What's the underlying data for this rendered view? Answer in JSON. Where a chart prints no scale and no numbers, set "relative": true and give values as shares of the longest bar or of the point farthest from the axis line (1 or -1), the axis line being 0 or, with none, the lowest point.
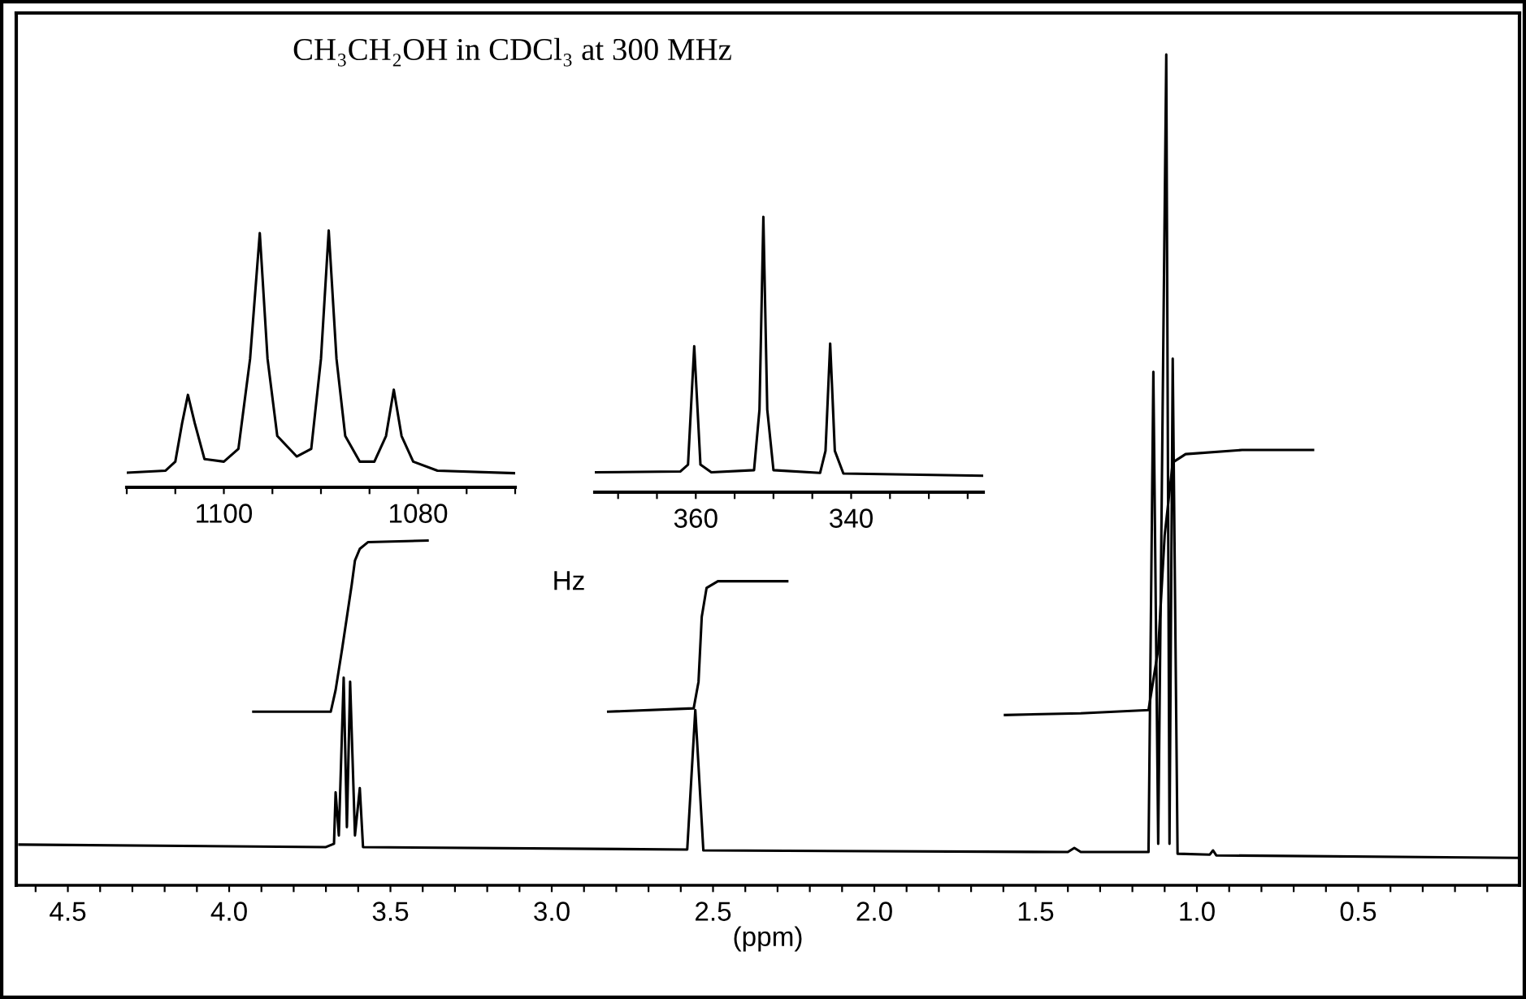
{
  "chart_data": [
    {
      "type": "line",
      "title": "CH₃CH₂OH in CDCl₃ at 300 MHz",
      "xlabel": "(ppm)",
      "relative": true,
      "tick_labels": "x",
      "grid": false,
      "xlim": [
        4.66,
        0.0
      ],
      "xticks": [
        {
          "value": 4.6,
          "label": null
        },
        4.5,
        {
          "value": 4.4,
          "label": null
        },
        {
          "value": 4.3,
          "label": null
        },
        {
          "value": 4.2,
          "label": null
        },
        {
          "value": 4.1,
          "label": null
        },
        {
          "value": 4.0,
          "label": "4.0"
        },
        {
          "value": 3.9,
          "label": null
        },
        {
          "value": 3.8,
          "label": null
        },
        {
          "value": 3.7,
          "label": null
        },
        {
          "value": 3.6,
          "label": null
        },
        3.5,
        {
          "value": 3.4,
          "label": null
        },
        {
          "value": 3.3,
          "label": null
        },
        {
          "value": 3.2,
          "label": null
        },
        {
          "value": 3.1,
          "label": null
        },
        {
          "value": 3.0,
          "label": "3.0"
        },
        {
          "value": 2.9,
          "label": null
        },
        {
          "value": 2.8,
          "label": null
        },
        {
          "value": 2.7,
          "label": null
        },
        {
          "value": 2.6,
          "label": null
        },
        2.5,
        {
          "value": 2.4,
          "label": null
        },
        {
          "value": 2.3,
          "label": null
        },
        {
          "value": 2.2,
          "label": null
        },
        {
          "value": 2.1,
          "label": null
        },
        {
          "value": 2.0,
          "label": "2.0"
        },
        {
          "value": 1.9,
          "label": null
        },
        {
          "value": 1.8,
          "label": null
        },
        {
          "value": 1.7,
          "label": null
        },
        {
          "value": 1.6,
          "label": null
        },
        1.5,
        {
          "value": 1.4,
          "label": null
        },
        {
          "value": 1.3,
          "label": null
        },
        {
          "value": 1.2,
          "label": null
        },
        {
          "value": 1.1,
          "label": null
        },
        {
          "value": 1.0,
          "label": "1.0"
        },
        {
          "value": 0.9,
          "label": null
        },
        {
          "value": 0.8,
          "label": null
        },
        {
          "value": 0.7,
          "label": null
        },
        {
          "value": 0.6,
          "label": null
        },
        0.5,
        {
          "value": 0.4,
          "label": null
        },
        {
          "value": 0.3,
          "label": null
        },
        {
          "value": 0.2,
          "label": null
        },
        {
          "value": 0.1,
          "label": null
        }
      ],
      "series": [
        {
          "color": "#000000",
          "x": [
            4.65,
            3.7,
            3.675,
            3.67,
            3.66,
            3.645,
            3.635,
            3.625,
            3.61,
            3.595,
            3.585,
            2.58,
            2.555,
            2.53,
            1.4,
            1.38,
            1.36,
            1.15,
            1.135,
            1.12,
            1.095,
            1.085,
            1.075,
            1.06,
            0.96,
            0.95,
            0.94,
            0.0
          ],
          "values": [
            0.049,
            0.046,
            0.05,
            0.112,
            0.06,
            0.25,
            0.07,
            0.245,
            0.06,
            0.117,
            0.046,
            0.043,
            0.211,
            0.042,
            0.04,
            0.045,
            0.04,
            0.04,
            0.618,
            0.05,
            1.0,
            0.05,
            0.634,
            0.038,
            0.037,
            0.042,
            0.036,
            0.033
          ]
        },
        {
          "color": "#000000",
          "x": [
            3.925,
            3.685,
            3.67,
            3.65,
            3.635,
            3.62,
            3.61,
            3.595,
            3.57,
            3.385
          ],
          "values": [
            0.209,
            0.209,
            0.235,
            0.284,
            0.323,
            0.362,
            0.391,
            0.405,
            0.413,
            0.415
          ]
        },
        {
          "color": "#000000",
          "x": [
            2.825,
            2.56,
            2.545,
            2.535,
            2.52,
            2.485,
            2.27
          ],
          "values": [
            0.209,
            0.213,
            0.245,
            0.323,
            0.358,
            0.366,
            0.366
          ]
        },
        {
          "color": "#000000",
          "x": [
            1.595,
            1.36,
            1.15,
            1.12,
            1.1,
            1.075,
            1.035,
            0.86,
            0.64
          ],
          "values": [
            0.205,
            0.207,
            0.211,
            0.284,
            0.421,
            0.509,
            0.519,
            0.524,
            0.524
          ]
        }
      ]
    },
    {
      "type": "line",
      "relative": true,
      "tick_labels": "x",
      "grid": false,
      "xlim": [
        1110,
        1070
      ],
      "xticks": [
        {
          "value": 1110,
          "label": null
        },
        {
          "value": 1105,
          "label": null
        },
        1100,
        {
          "value": 1095,
          "label": null
        },
        {
          "value": 1090,
          "label": null
        },
        {
          "value": 1085,
          "label": null
        },
        1080,
        {
          "value": 1075,
          "label": null
        },
        {
          "value": 1070,
          "label": null
        }
      ],
      "series": [
        {
          "color": "#000000",
          "x": [
            1110,
            1106,
            1105,
            1104.3,
            1103.7,
            1103,
            1102,
            1100,
            1098.5,
            1097.3,
            1096.3,
            1095.5,
            1094.5,
            1092.5,
            1091,
            1090,
            1089.2,
            1088.4,
            1087.5,
            1086,
            1084.5,
            1083.3,
            1082.5,
            1081.7,
            1080.5,
            1078,
            1070
          ],
          "values": [
            0.057,
            0.065,
            0.1,
            0.25,
            0.36,
            0.25,
            0.11,
            0.1,
            0.15,
            0.5,
            0.99,
            0.5,
            0.2,
            0.12,
            0.15,
            0.5,
            1.0,
            0.5,
            0.2,
            0.1,
            0.1,
            0.2,
            0.38,
            0.2,
            0.1,
            0.065,
            0.055
          ]
        }
      ]
    },
    {
      "type": "line",
      "relative": true,
      "xlabel": "Hz",
      "tick_labels": "x",
      "grid": false,
      "xlim": [
        373,
        323
      ],
      "xticks": [
        {
          "value": 370,
          "label": null
        },
        {
          "value": 365,
          "label": null
        },
        360,
        {
          "value": 355,
          "label": null
        },
        {
          "value": 350,
          "label": null
        },
        {
          "value": 345,
          "label": null
        },
        340,
        {
          "value": 335,
          "label": null
        },
        {
          "value": 330,
          "label": null
        },
        {
          "value": 325,
          "label": null
        }
      ],
      "series": [
        {
          "color": "#000000",
          "x": [
            373,
            362,
            361,
            360.2,
            359.4,
            358,
            352.5,
            351.8,
            351.3,
            350.8,
            350,
            344,
            343.3,
            342.7,
            342.1,
            341,
            323
          ],
          "values": [
            0.072,
            0.075,
            0.1,
            0.53,
            0.1,
            0.072,
            0.08,
            0.3,
            1.0,
            0.3,
            0.08,
            0.07,
            0.15,
            0.54,
            0.15,
            0.068,
            0.06
          ]
        }
      ]
    }
  ]
}
